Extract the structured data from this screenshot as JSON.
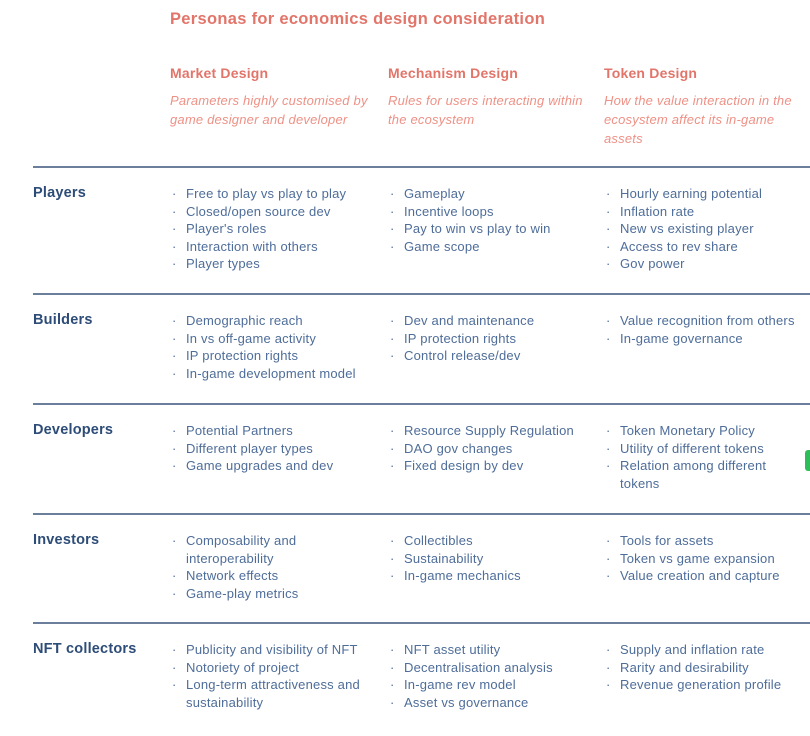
{
  "page": {
    "title": "Personas for economics design consideration"
  },
  "bullet": "·",
  "columns": [
    {
      "label": "Market Design",
      "subtitle": "Parameters highly customised by game designer and developer"
    },
    {
      "label": "Mechanism Design",
      "subtitle": "Rules for users interacting within the ecosystem"
    },
    {
      "label": "Token Design",
      "subtitle": "How the value interaction in the ecosystem affect its in-game assets"
    }
  ],
  "rows": [
    {
      "persona": "Players",
      "market_design": [
        "Free to play vs play to play",
        "Closed/open source dev",
        "Player's roles",
        "Interaction with others",
        "Player types"
      ],
      "mechanism_design": [
        "Gameplay",
        "Incentive loops",
        "Pay to win vs play to win",
        "Game scope"
      ],
      "token_design": [
        "Hourly earning potential",
        "Inflation rate",
        "New vs existing player",
        "Access to rev share",
        "Gov power"
      ]
    },
    {
      "persona": "Builders",
      "market_design": [
        "Demographic reach",
        "In vs off-game activity",
        "IP protection rights",
        "In-game development model"
      ],
      "mechanism_design": [
        "Dev and maintenance",
        "IP protection rights",
        "Control release/dev"
      ],
      "token_design": [
        "Value recognition from others",
        "In-game governance"
      ]
    },
    {
      "persona": "Developers",
      "market_design": [
        "Potential Partners",
        "Different player types",
        "Game upgrades and dev"
      ],
      "mechanism_design": [
        "Resource Supply Regulation",
        "DAO gov changes",
        "Fixed design by dev"
      ],
      "token_design": [
        "Token Monetary Policy",
        "Utility of different tokens",
        "Relation among different tokens"
      ]
    },
    {
      "persona": "Investors",
      "market_design": [
        "Composability and interoperability",
        "Network effects",
        "Game-play metrics"
      ],
      "mechanism_design": [
        "Collectibles",
        "Sustainability",
        "In-game mechanics"
      ],
      "token_design": [
        "Tools for assets",
        "Token vs game expansion",
        "Value creation and capture"
      ]
    },
    {
      "persona": "NFT collectors",
      "market_design": [
        "Publicity and visibility of NFT",
        "Notoriety of project",
        "Long-term attractiveness and sustainability"
      ],
      "mechanism_design": [
        "NFT asset utility",
        "Decentralisation analysis",
        "In-game rev model",
        "Asset vs governance"
      ],
      "token_design": [
        "Supply and inflation rate",
        "Rarity and desirability",
        "Revenue generation profile"
      ]
    }
  ],
  "colors": {
    "accent_coral": "#e2756a",
    "accent_coral_light": "#ee9186",
    "persona_navy": "#2d4c77",
    "body_slate": "#4e6d99",
    "divider": "#6b7f9d",
    "fragment_green": "#2ebd59"
  }
}
